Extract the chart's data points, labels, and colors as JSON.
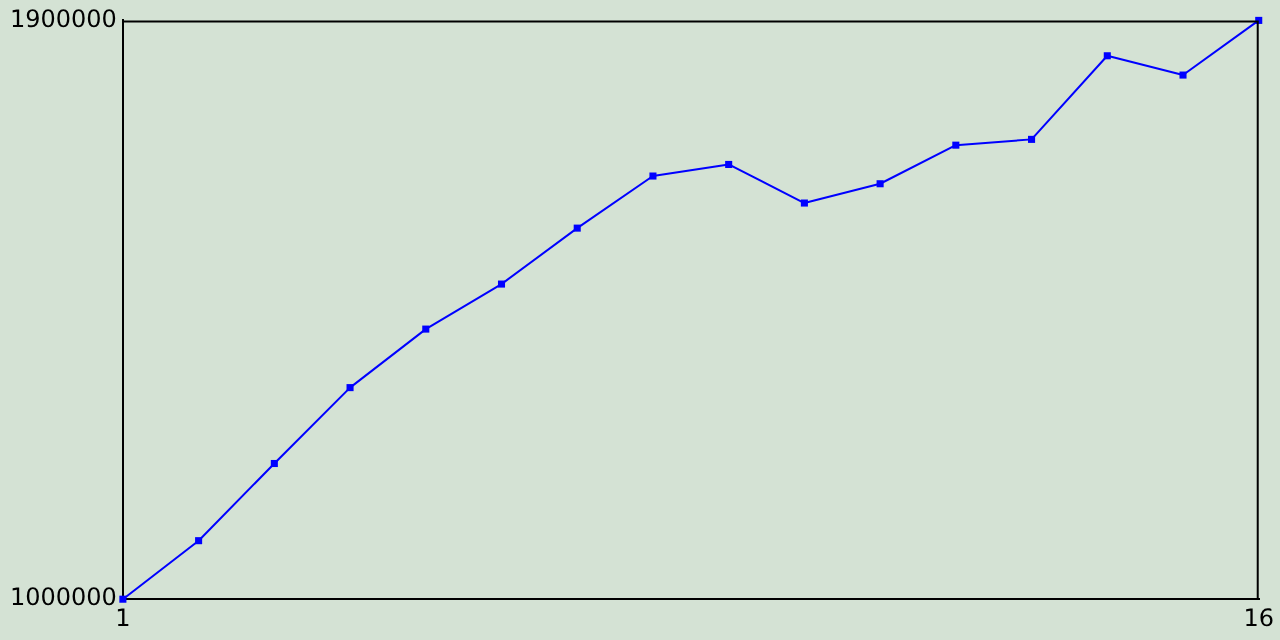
{
  "chart_data": {
    "type": "line",
    "x": [
      1,
      2,
      3,
      4,
      5,
      6,
      7,
      8,
      9,
      10,
      11,
      12,
      13,
      14,
      15,
      16
    ],
    "series": [
      {
        "color": "#0000ff",
        "values": [
          1000000,
          1091000,
          1211000,
          1329000,
          1420000,
          1490000,
          1577000,
          1658000,
          1676000,
          1616000,
          1646000,
          1706000,
          1715000,
          1845000,
          1815000,
          1900000
        ]
      }
    ],
    "xlim": [
      1,
      16
    ],
    "xticks": [
      1,
      16
    ],
    "ylim": [
      1000000,
      1900000
    ],
    "yticks": [
      1000000,
      1900000
    ],
    "grid": false,
    "legend": false,
    "marker": "square",
    "line_style": "solid"
  }
}
